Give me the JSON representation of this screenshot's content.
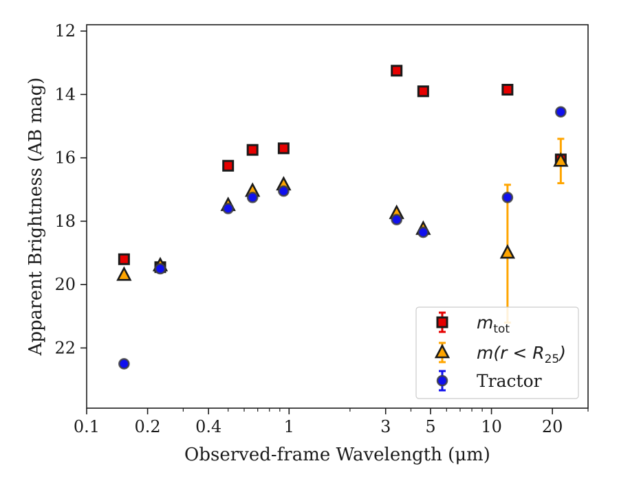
{
  "chart_data": {
    "type": "scatter",
    "xlabel": "Observed-frame Wavelength (μm)",
    "ylabel": "Apparent Brightness (AB mag)",
    "x_scale": "log",
    "xlim": [
      0.1,
      30
    ],
    "ylim": [
      23.9,
      11.8
    ],
    "y_inverted": true,
    "x_ticks": [
      0.1,
      0.2,
      0.4,
      1,
      3,
      5,
      10,
      20
    ],
    "x_tick_labels": [
      "0.1",
      "0.2",
      "0.4",
      "1",
      "3",
      "5",
      "10",
      "20"
    ],
    "y_ticks": [
      12,
      14,
      16,
      18,
      20,
      22
    ],
    "y_tick_labels": [
      "12",
      "14",
      "16",
      "18",
      "20",
      "22"
    ],
    "grid": false,
    "legend_position": "lower-right",
    "series": [
      {
        "name": "m_tot",
        "label_main": "m",
        "label_sub": "tot",
        "marker": "square",
        "color": "#e60000",
        "edge_color": "#1a1a1a",
        "points": [
          {
            "x": 0.153,
            "y": 19.2
          },
          {
            "x": 0.231,
            "y": 19.45
          },
          {
            "x": 0.5,
            "y": 16.25
          },
          {
            "x": 0.66,
            "y": 15.75
          },
          {
            "x": 0.94,
            "y": 15.7
          },
          {
            "x": 3.4,
            "y": 13.25
          },
          {
            "x": 4.6,
            "y": 13.9
          },
          {
            "x": 12.0,
            "y": 13.85
          },
          {
            "x": 22.0,
            "y": 16.05
          }
        ]
      },
      {
        "name": "m(r < R_25)",
        "label_main": "m(r < R",
        "label_sub": "25",
        "label_end": ")",
        "marker": "triangle",
        "color": "#ffa500",
        "edge_color": "#1a1a1a",
        "points": [
          {
            "x": 0.153,
            "y": 19.7
          },
          {
            "x": 0.231,
            "y": 19.4
          },
          {
            "x": 0.5,
            "y": 17.5
          },
          {
            "x": 0.66,
            "y": 17.05
          },
          {
            "x": 0.94,
            "y": 16.85
          },
          {
            "x": 3.4,
            "y": 17.75
          },
          {
            "x": 4.6,
            "y": 18.25
          },
          {
            "x": 12.0,
            "y": 19.0,
            "err_low": 16.85,
            "err_high": 21.2
          },
          {
            "x": 22.0,
            "y": 16.1,
            "err_low": 15.4,
            "err_high": 16.8
          }
        ]
      },
      {
        "name": "Tractor",
        "label_main": "Tractor",
        "marker": "circle",
        "color": "#1010ee",
        "edge_color": "#404040",
        "points": [
          {
            "x": 0.153,
            "y": 22.5
          },
          {
            "x": 0.231,
            "y": 19.5
          },
          {
            "x": 0.5,
            "y": 17.6
          },
          {
            "x": 0.66,
            "y": 17.25
          },
          {
            "x": 0.94,
            "y": 17.05
          },
          {
            "x": 3.4,
            "y": 17.95
          },
          {
            "x": 4.6,
            "y": 18.35
          },
          {
            "x": 12.0,
            "y": 17.25
          },
          {
            "x": 22.0,
            "y": 14.55
          }
        ]
      }
    ]
  }
}
